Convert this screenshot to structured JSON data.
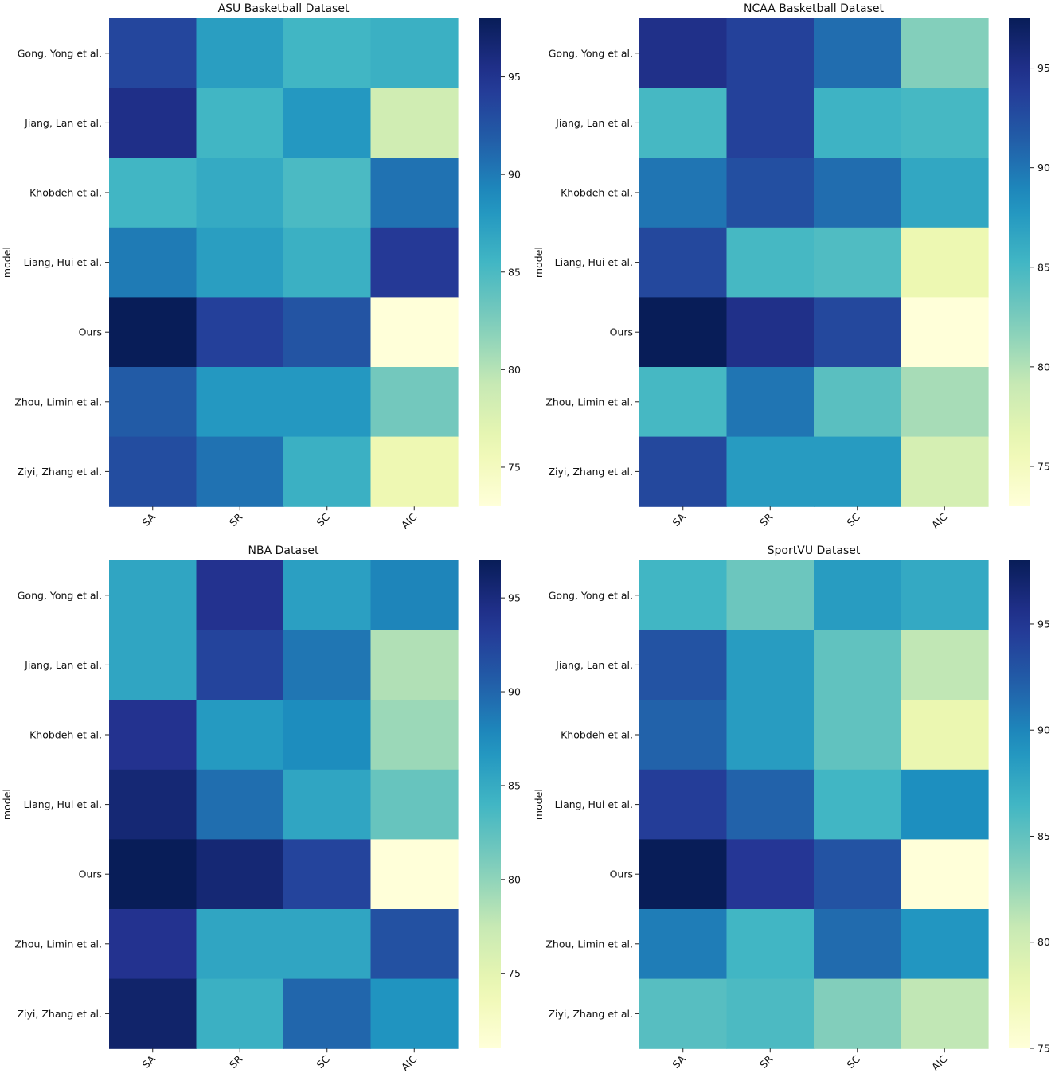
{
  "chart_data": [
    {
      "type": "heatmap",
      "title": "ASU Basketball Dataset",
      "ylabel": "model",
      "xlabel": "",
      "x_categories": [
        "SA",
        "SR",
        "SC",
        "AIC"
      ],
      "y_categories": [
        "Gong, Yong et al.",
        "Jiang, Lan et al.",
        "Khobdeh et al.",
        "Liang, Hui et al.",
        "Ours",
        "Zhou, Limin et al.",
        "Ziyi, Zhang et al."
      ],
      "values": [
        [
          93.5,
          87.5,
          85.5,
          86.0
        ],
        [
          95.5,
          85.5,
          88.0,
          78.5
        ],
        [
          85.5,
          86.5,
          85.0,
          90.5
        ],
        [
          90.0,
          87.5,
          86.0,
          94.5
        ],
        [
          98.0,
          94.0,
          92.5,
          73.0
        ],
        [
          92.0,
          88.0,
          88.0,
          83.0
        ],
        [
          93.0,
          90.5,
          86.0,
          76.0
        ]
      ],
      "colorbar": {
        "vmin": 73.0,
        "vmax": 98.0,
        "ticks": [
          75,
          80,
          85,
          90,
          95
        ]
      }
    },
    {
      "type": "heatmap",
      "title": "NCAA Basketball Dataset",
      "ylabel": "model",
      "xlabel": "",
      "x_categories": [
        "SA",
        "SR",
        "SC",
        "AIC"
      ],
      "y_categories": [
        "Gong, Yong et al.",
        "Jiang, Lan et al.",
        "Khobdeh et al.",
        "Liang, Hui et al.",
        "Ours",
        "Zhou, Limin et al.",
        "Ziyi, Zhang et al."
      ],
      "values": [
        [
          95.0,
          93.5,
          90.5,
          82.0
        ],
        [
          85.0,
          93.5,
          85.5,
          85.0
        ],
        [
          90.0,
          92.5,
          90.5,
          86.5
        ],
        [
          93.0,
          85.0,
          84.5,
          76.0
        ],
        [
          97.5,
          95.0,
          93.0,
          73.0
        ],
        [
          85.0,
          90.0,
          84.0,
          80.5
        ],
        [
          93.0,
          87.5,
          87.5,
          78.0
        ]
      ],
      "colorbar": {
        "vmin": 73.0,
        "vmax": 97.5,
        "ticks": [
          75,
          80,
          85,
          90,
          95
        ]
      }
    },
    {
      "type": "heatmap",
      "title": "NBA Dataset",
      "ylabel": "model",
      "xlabel": "",
      "x_categories": [
        "SA",
        "SR",
        "SC",
        "AIC"
      ],
      "y_categories": [
        "Gong, Yong et al.",
        "Jiang, Lan et al.",
        "Khobdeh et al.",
        "Liang, Hui et al.",
        "Ours",
        "Zhou, Limin et al.",
        "Ziyi, Zhang et al."
      ],
      "values": [
        [
          85.5,
          94.0,
          86.0,
          88.0
        ],
        [
          85.5,
          92.5,
          89.0,
          78.5
        ],
        [
          94.0,
          86.5,
          87.5,
          79.5
        ],
        [
          95.5,
          89.5,
          85.5,
          82.0
        ],
        [
          97.0,
          95.5,
          92.5,
          71.0
        ],
        [
          94.0,
          85.5,
          85.5,
          91.5
        ],
        [
          96.0,
          84.5,
          90.0,
          87.0
        ]
      ],
      "colorbar": {
        "vmin": 71.0,
        "vmax": 97.0,
        "ticks": [
          75,
          80,
          85,
          90,
          95
        ]
      }
    },
    {
      "type": "heatmap",
      "title": "SportVU Dataset",
      "ylabel": "model",
      "xlabel": "",
      "x_categories": [
        "SA",
        "SR",
        "SC",
        "AIC"
      ],
      "y_categories": [
        "Gong, Yong et al.",
        "Jiang, Lan et al.",
        "Khobdeh et al.",
        "Liang, Hui et al.",
        "Ours",
        "Zhou, Limin et al.",
        "Ziyi, Zhang et al."
      ],
      "values": [
        [
          86.5,
          84.5,
          88.5,
          87.5
        ],
        [
          93.0,
          88.5,
          85.0,
          81.0
        ],
        [
          92.0,
          88.5,
          85.0,
          78.0
        ],
        [
          94.5,
          92.0,
          86.5,
          89.5
        ],
        [
          98.0,
          95.0,
          93.0,
          75.0
        ],
        [
          90.5,
          86.5,
          91.5,
          89.0
        ],
        [
          85.5,
          86.0,
          83.5,
          81.0
        ]
      ],
      "colorbar": {
        "vmin": 75.0,
        "vmax": 98.0,
        "ticks": [
          75,
          80,
          85,
          90,
          95
        ]
      }
    }
  ]
}
